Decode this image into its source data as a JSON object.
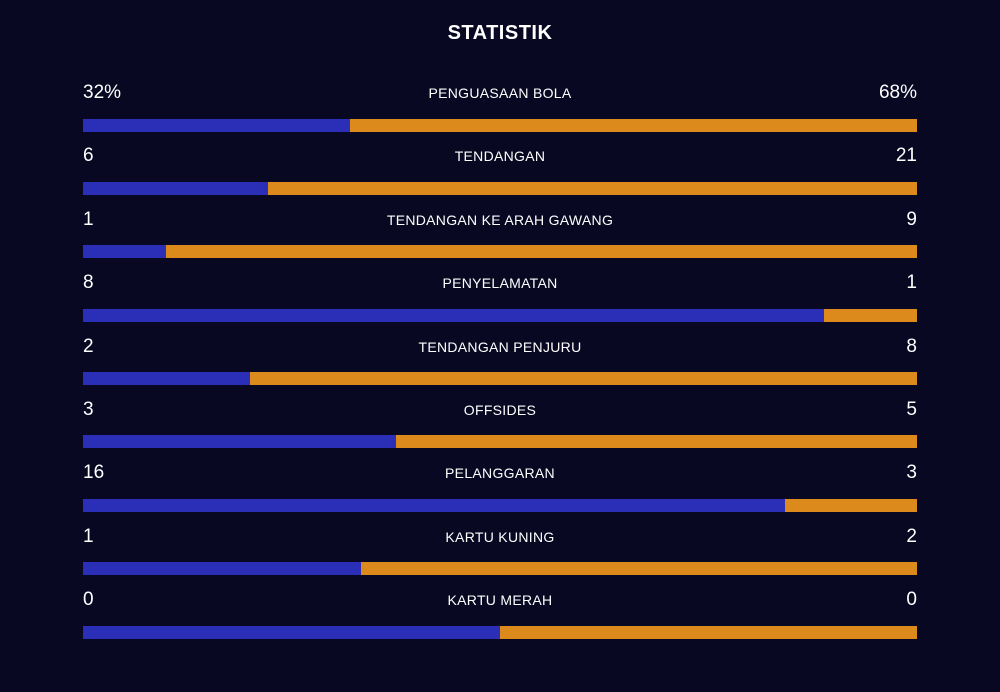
{
  "title": "STATISTIK",
  "colors": {
    "background": "#080822",
    "home": "#2b2fb8",
    "away": "#dd8a1d",
    "text": "#ffffff"
  },
  "stats": [
    {
      "label": "PENGUASAAN BOLA",
      "left": "32%",
      "right": "68%",
      "left_share": 0.32
    },
    {
      "label": "TENDANGAN",
      "left": "6",
      "right": "21",
      "left_share": 0.222
    },
    {
      "label": "TENDANGAN KE ARAH GAWANG",
      "left": "1",
      "right": "9",
      "left_share": 0.1
    },
    {
      "label": "PENYELAMATAN",
      "left": "8",
      "right": "1",
      "left_share": 0.889
    },
    {
      "label": "TENDANGAN PENJURU",
      "left": "2",
      "right": "8",
      "left_share": 0.2
    },
    {
      "label": "OFFSIDES",
      "left": "3",
      "right": "5",
      "left_share": 0.375
    },
    {
      "label": "PELANGGARAN",
      "left": "16",
      "right": "3",
      "left_share": 0.842
    },
    {
      "label": "KARTU KUNING",
      "left": "1",
      "right": "2",
      "left_share": 0.333
    },
    {
      "label": "KARTU MERAH",
      "left": "0",
      "right": "0",
      "left_share": 0.5
    }
  ]
}
